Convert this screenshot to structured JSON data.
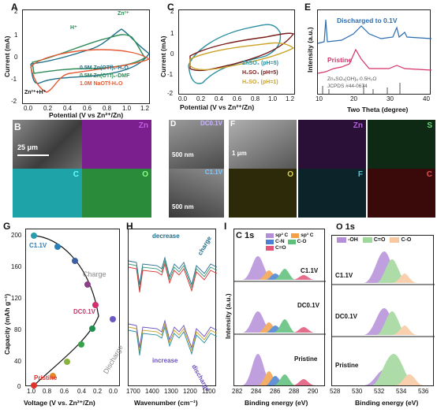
{
  "panels": {
    "A": {
      "label": "A",
      "ylabel": "Current (mA)",
      "xlabel": "Potential (V vs Zn²⁺/Zn)",
      "yticks": [
        "2",
        "1",
        "0",
        "-1",
        "-2"
      ],
      "xticks": [
        "0.0",
        "0.2",
        "0.4",
        "0.6",
        "0.8",
        "1.0",
        "1.2"
      ],
      "annotations": [
        "Zn²⁺",
        "H⁺",
        "Zn²⁺+H⁺"
      ],
      "legend": [
        {
          "text": "0.5M Zn(OTf)₂-H₂O",
          "color": "#1f6f8b"
        },
        {
          "text": "0.5M Zn(OTf)₂-DMF",
          "color": "#2e8b57"
        },
        {
          "text": "1.0M NaOTf-H₂O",
          "color": "#e55934"
        }
      ]
    },
    "C": {
      "label": "C",
      "ylabel": "Current (mA)",
      "xlabel": "Potential (V vs Zn²⁺/Zn)",
      "yticks": [
        "2",
        "1",
        "0",
        "-1",
        "-2"
      ],
      "xticks": [
        "0.0",
        "0.2",
        "0.4",
        "0.6",
        "0.8",
        "1.0",
        "1.2"
      ],
      "legend": [
        {
          "text": "ZnSO₄ (pH=5)",
          "color": "#2a8fa0"
        },
        {
          "text": "H₂SO₄ (pH=5)",
          "color": "#7a1a1a"
        },
        {
          "text": "H₂SO₄ (pH=1)",
          "color": "#c9a227"
        }
      ]
    },
    "E": {
      "label": "E",
      "ylabel": "Intensity (a.u.)",
      "xlabel": "Two Theta (degree)",
      "xticks": [
        "10",
        "20",
        "30",
        "40"
      ],
      "traces": [
        {
          "text": "Discharged to 0.1V",
          "color": "#2b6cb0"
        },
        {
          "text": "Pristine",
          "color": "#d6336c"
        }
      ],
      "reference": "Zn₄SO₄(OH)₆·0.5H₂O",
      "jcpds": "JCPDS #44-0674"
    },
    "B": {
      "label": "B",
      "scale": "25 μm",
      "maps": [
        "Zn",
        "C",
        "O"
      ]
    },
    "D": {
      "label": "D",
      "top": "DC0.1V",
      "bottom": "C1.1V",
      "scale_top": "500 nm",
      "scale_bottom": "500 nm"
    },
    "F": {
      "label": "F",
      "scale": "1 μm",
      "maps": [
        "Zn",
        "S",
        "O",
        "F",
        "C"
      ]
    },
    "G": {
      "label": "G",
      "ylabel": "Capacity (mAh g⁻¹)",
      "xlabel": "Voltage (V vs. Zn²⁺/Zn)",
      "yticks": [
        "200",
        "160",
        "120",
        "80",
        "40",
        "0"
      ],
      "xticks": [
        "1.0",
        "0.8",
        "0.6",
        "0.4",
        "0.2",
        "0.0"
      ],
      "points": [
        "C1.1V",
        "DC0.1V",
        "Pristine"
      ],
      "arrows": [
        "Charge",
        "Discharge"
      ]
    },
    "H": {
      "label": "H",
      "xlabel": "Wavenumber (cm⁻¹)",
      "xticks": [
        "1700",
        "1400",
        "1300",
        "1200",
        "1100"
      ],
      "notes": [
        "decrease",
        "charge",
        "increase",
        "discharge"
      ]
    },
    "I": {
      "label": "I",
      "title": "C 1s",
      "ylabel": "Intensity (a.u.)",
      "xlabel": "Binding energy (eV)",
      "xticks": [
        "282",
        "284",
        "286",
        "288",
        "290"
      ],
      "legend": [
        {
          "text": "sp² C",
          "color": "#b48fd8"
        },
        {
          "text": "sp³ C",
          "color": "#f3a04b"
        },
        {
          "text": "C-N",
          "color": "#4a7fd1"
        },
        {
          "text": "C-O",
          "color": "#5cbf7a"
        },
        {
          "text": "C=O",
          "color": "#e2557a"
        }
      ],
      "rows": [
        "C1.1V",
        "DC0.1V",
        "Pristine"
      ]
    },
    "O": {
      "label": "O 1s",
      "xlabel": "Binding energy (eV)",
      "xticks": [
        "528",
        "530",
        "532",
        "534",
        "536"
      ],
      "legend": [
        {
          "text": "-OH",
          "color": "#b48fd8"
        },
        {
          "text": "C=O",
          "color": "#9fd79a"
        },
        {
          "text": "C-O",
          "color": "#f7c8a0"
        }
      ],
      "rows": [
        "C1.1V",
        "DC0.1V",
        "Pristine"
      ]
    }
  }
}
